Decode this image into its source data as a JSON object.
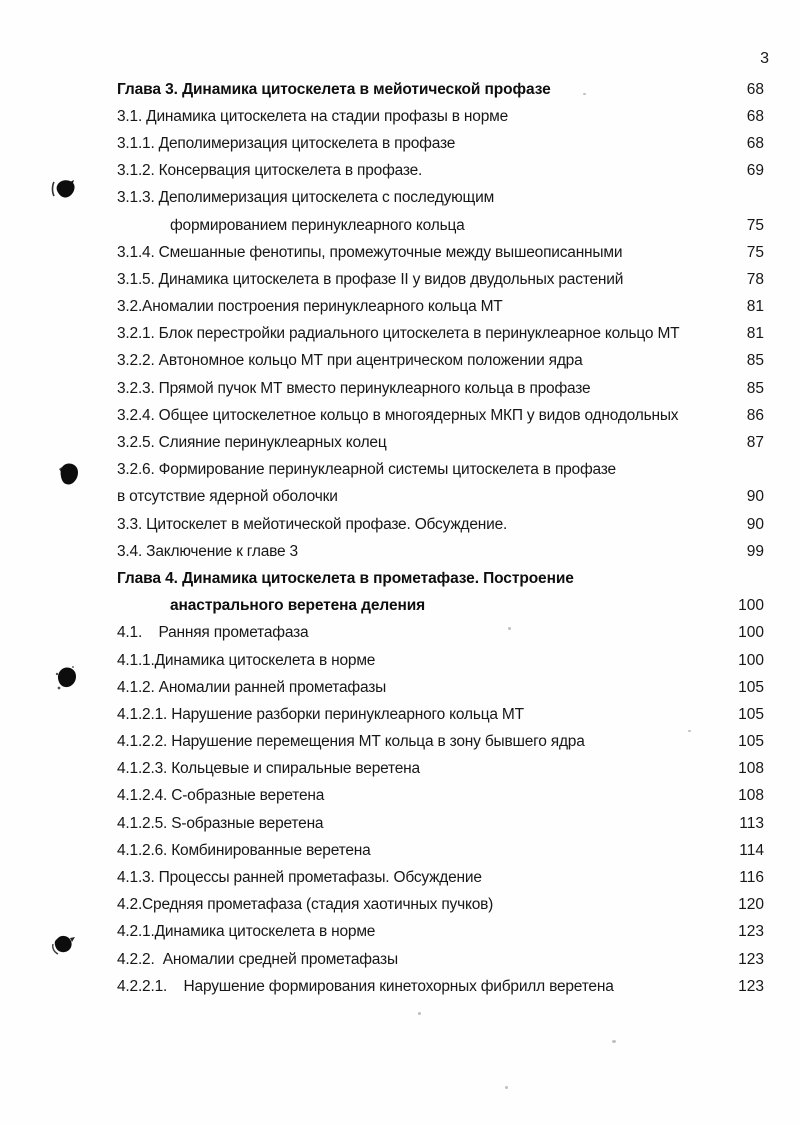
{
  "page": {
    "header_number": "3"
  },
  "toc": {
    "entries": [
      {
        "text": "Глава 3. Динамика цитоскелета в мейотической профазе",
        "page": "68",
        "bold": true,
        "indent": false
      },
      {
        "text": "3.1. Динамика цитоскелета на стадии профазы в норме",
        "page": "68",
        "bold": false,
        "indent": false
      },
      {
        "text": "3.1.1. Деполимеризация цитоскелета в профазе",
        "page": "68",
        "bold": false,
        "indent": false
      },
      {
        "text": "3.1.2. Консервация цитоскелета в профазе.",
        "page": "69",
        "bold": false,
        "indent": false
      },
      {
        "text": "3.1.3. Деполимеризация цитоскелета с последующим",
        "page": "",
        "bold": false,
        "indent": false
      },
      {
        "text": "формированием перинуклеарного кольца",
        "page": "75",
        "bold": false,
        "indent": true
      },
      {
        "text": "3.1.4. Смешанные фенотипы, промежуточные между вышеописанными",
        "page": "75",
        "bold": false,
        "indent": false
      },
      {
        "text": "3.1.5. Динамика цитоскелета в профазе II у видов двудольных растений",
        "page": "78",
        "bold": false,
        "indent": false
      },
      {
        "text": "3.2.Аномалии построения перинуклеарного кольца МТ",
        "page": "81",
        "bold": false,
        "indent": false
      },
      {
        "text": "3.2.1. Блок перестройки радиального цитоскелета в перинуклеарное кольцо МТ",
        "page": "81",
        "bold": false,
        "indent": false
      },
      {
        "text": "3.2.2. Автономное кольцо МТ при ацентрическом положении ядра",
        "page": "85",
        "bold": false,
        "indent": false
      },
      {
        "text": "3.2.3. Прямой пучок МТ вместо перинуклеарного кольца в профазе",
        "page": "85",
        "bold": false,
        "indent": false
      },
      {
        "text": "3.2.4. Общее цитоскелетное кольцо в многоядерных МКП у видов однодольных",
        "page": "86",
        "bold": false,
        "indent": false
      },
      {
        "text": "3.2.5. Слияние перинуклеарных колец",
        "page": "87",
        "bold": false,
        "indent": false
      },
      {
        "text": "3.2.6. Формирование перинуклеарной системы цитоскелета в профазе",
        "page": "",
        "bold": false,
        "indent": false
      },
      {
        "text": "в отсутствие ядерной оболочки",
        "page": "90",
        "bold": false,
        "indent": false
      },
      {
        "text": "3.3. Цитоскелет в мейотической профазе. Обсуждение.",
        "page": "90",
        "bold": false,
        "indent": false
      },
      {
        "text": "3.4. Заключение к главе 3",
        "page": "99",
        "bold": false,
        "indent": false
      },
      {
        "text": "Глава 4. Динамика цитоскелета в прометафазе. Построение",
        "page": "",
        "bold": true,
        "indent": false
      },
      {
        "text": "анастрального веретена деления",
        "page": "100",
        "bold": true,
        "indent": true
      },
      {
        "text": "4.1.    Ранняя прометафаза",
        "page": "100",
        "bold": false,
        "indent": false
      },
      {
        "text": "4.1.1.Динамика цитоскелета в норме",
        "page": "100",
        "bold": false,
        "indent": false
      },
      {
        "text": "4.1.2. Аномалии ранней прометафазы",
        "page": "105",
        "bold": false,
        "indent": false
      },
      {
        "text": "4.1.2.1. Нарушение разборки перинуклеарного кольца МТ",
        "page": "105",
        "bold": false,
        "indent": false
      },
      {
        "text": "4.1.2.2. Нарушение перемещения МТ кольца в зону бывшего ядра",
        "page": "105",
        "bold": false,
        "indent": false
      },
      {
        "text": "4.1.2.3. Кольцевые и спиральные веретена",
        "page": "108",
        "bold": false,
        "indent": false
      },
      {
        "text": "4.1.2.4. С-образные веретена",
        "page": "108",
        "bold": false,
        "indent": false
      },
      {
        "text": "4.1.2.5. S-образные веретена",
        "page": "113",
        "bold": false,
        "indent": false
      },
      {
        "text": "4.1.2.6. Комбинированные веретена",
        "page": "114",
        "bold": false,
        "indent": false
      },
      {
        "text": "4.1.3. Процессы ранней прометафазы. Обсуждение",
        "page": "116",
        "bold": false,
        "indent": false
      },
      {
        "text": "4.2.Средняя прометафаза (стадия хаотичных пучков)",
        "page": "120",
        "bold": false,
        "indent": false
      },
      {
        "text": "4.2.1.Динамика цитоскелета в норме",
        "page": "123",
        "bold": false,
        "indent": false
      },
      {
        "text": "4.2.2.  Аномалии средней прометафазы",
        "page": "123",
        "bold": false,
        "indent": false
      },
      {
        "text": "4.2.2.1.    Нарушение формирования кинетохорных фибрилл веретена",
        "page": "123",
        "bold": false,
        "indent": false
      }
    ]
  },
  "artifacts": {
    "ink_color": "#0d0d0d"
  }
}
